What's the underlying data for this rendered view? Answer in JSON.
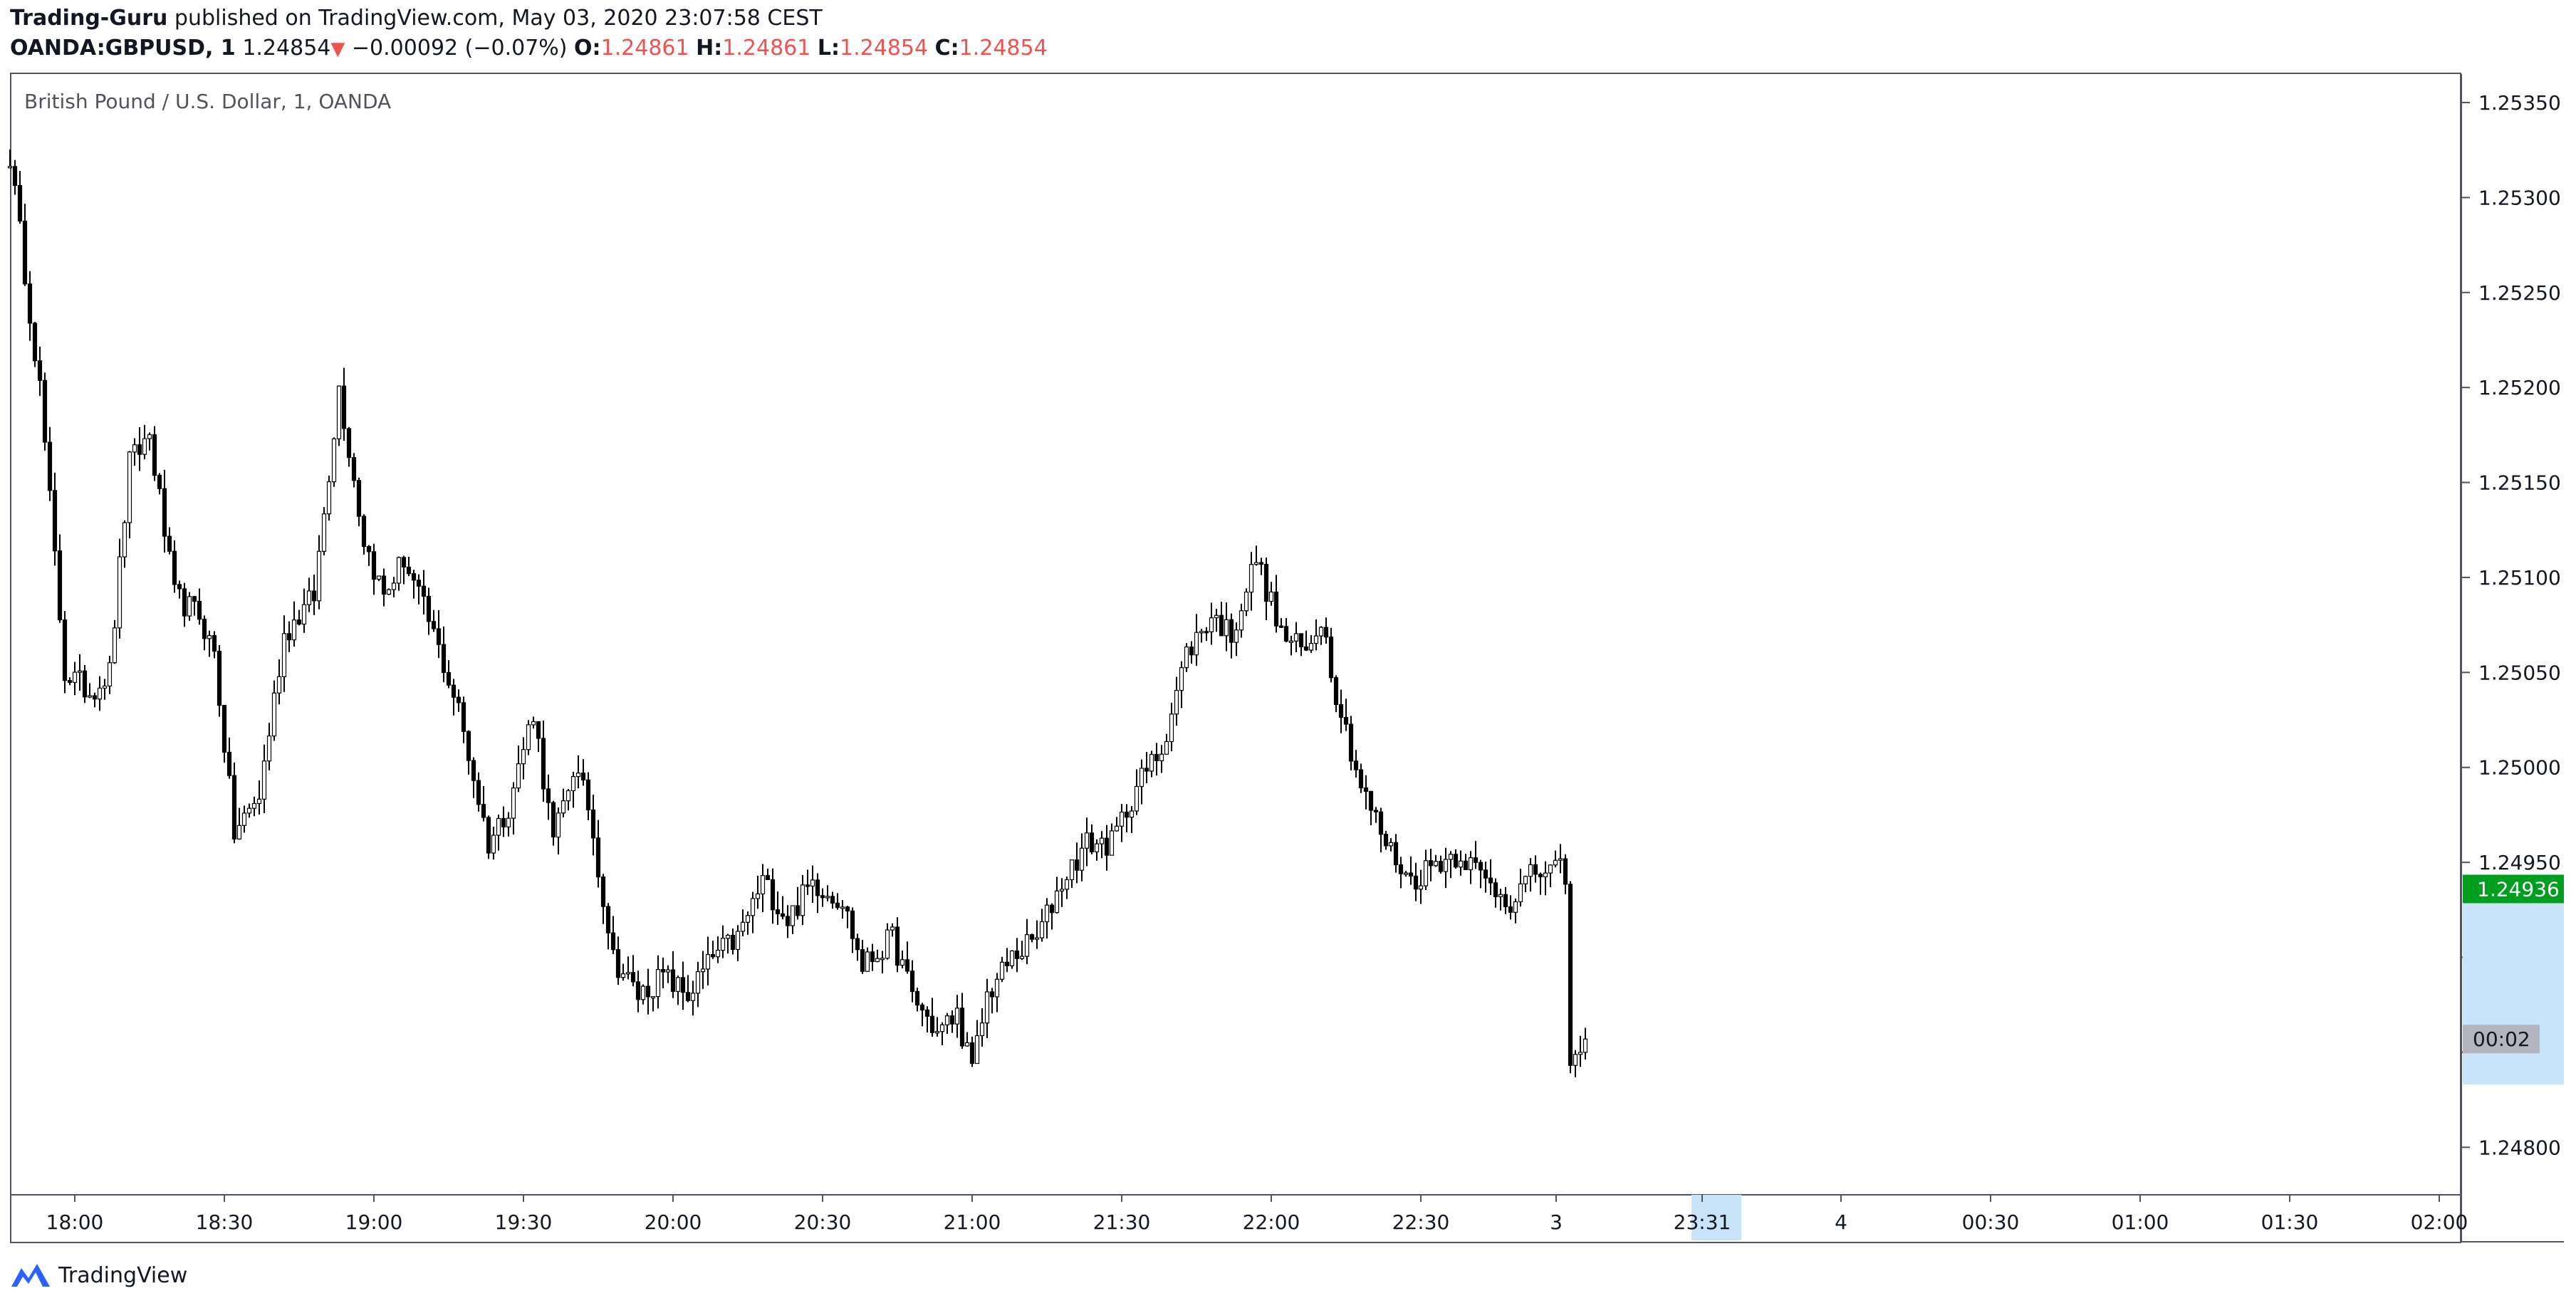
{
  "header": {
    "author": "Trading-Guru",
    "published_text": " published on TradingView.com, May 03, 2020 23:07:58 CEST",
    "symbol": "OANDA:GBPUSD, 1",
    "last": "1.24854",
    "change": "−0.00092 (−0.07%)",
    "o_label": "O:",
    "o_value": "1.24861",
    "h_label": "H:",
    "h_value": "1.24861",
    "l_label": "L:",
    "l_value": "1.24854",
    "c_label": "C:",
    "c_value": "1.24854"
  },
  "symbol_title": "British Pound / U.S. Dollar, 1, OANDA",
  "footer": {
    "brand": "TradingView",
    "icon": "tradingview-logo-icon"
  },
  "colors": {
    "price_badge": "#009e1e",
    "countdown_badge": "#b2b5be",
    "highlight": "#c9e3f9",
    "candle": "#000000",
    "down_arrow": "#ef5350"
  },
  "chart_data": {
    "type": "candlestick",
    "price_axis": {
      "ticks": [
        "1.25350",
        "1.25300",
        "1.25250",
        "1.25200",
        "1.25150",
        "1.25100",
        "1.25050",
        "1.25000",
        "1.24950",
        "1.24900",
        "1.24850",
        "1.24800"
      ],
      "range": [
        1.24775,
        1.25365
      ]
    },
    "time_axis": {
      "ticks": [
        "18:00",
        "18:30",
        "19:00",
        "19:30",
        "20:00",
        "20:30",
        "21:00",
        "21:30",
        "22:00",
        "22:30",
        "3",
        "23:31",
        "4",
        "00:30",
        "01:00",
        "01:30",
        "02:00"
      ],
      "highlight_label": "23:31"
    },
    "current_price_label": "1.24936",
    "countdown_label": "00:02",
    "price_path": [
      {
        "t": "17:47",
        "p": 1.25322
      },
      {
        "t": "17:53",
        "p": 1.252
      },
      {
        "t": "17:58",
        "p": 1.2505
      },
      {
        "t": "18:03",
        "p": 1.2504
      },
      {
        "t": "18:07",
        "p": 1.2505
      },
      {
        "t": "18:11",
        "p": 1.2516
      },
      {
        "t": "18:15",
        "p": 1.25175
      },
      {
        "t": "18:20",
        "p": 1.2509
      },
      {
        "t": "18:25",
        "p": 1.2508
      },
      {
        "t": "18:28",
        "p": 1.2506
      },
      {
        "t": "18:32",
        "p": 1.24965
      },
      {
        "t": "18:37",
        "p": 1.24985
      },
      {
        "t": "18:42",
        "p": 1.2507
      },
      {
        "t": "18:48",
        "p": 1.2509
      },
      {
        "t": "18:53",
        "p": 1.252
      },
      {
        "t": "18:58",
        "p": 1.2512
      },
      {
        "t": "19:02",
        "p": 1.2509
      },
      {
        "t": "19:06",
        "p": 1.2511
      },
      {
        "t": "19:12",
        "p": 1.2507
      },
      {
        "t": "19:17",
        "p": 1.2503
      },
      {
        "t": "19:23",
        "p": 1.2496
      },
      {
        "t": "19:27",
        "p": 1.2498
      },
      {
        "t": "19:32",
        "p": 1.2503
      },
      {
        "t": "19:36",
        "p": 1.2496
      },
      {
        "t": "19:40",
        "p": 1.25
      },
      {
        "t": "19:43",
        "p": 1.2498
      },
      {
        "t": "19:48",
        "p": 1.249
      },
      {
        "t": "19:53",
        "p": 1.2488
      },
      {
        "t": "19:58",
        "p": 1.2489
      },
      {
        "t": "20:03",
        "p": 1.2488
      },
      {
        "t": "20:08",
        "p": 1.249
      },
      {
        "t": "20:13",
        "p": 1.2491
      },
      {
        "t": "20:18",
        "p": 1.2494
      },
      {
        "t": "20:23",
        "p": 1.2492
      },
      {
        "t": "20:28",
        "p": 1.2494
      },
      {
        "t": "20:34",
        "p": 1.2493
      },
      {
        "t": "20:38",
        "p": 1.24895
      },
      {
        "t": "20:44",
        "p": 1.2491
      },
      {
        "t": "20:48",
        "p": 1.2488
      },
      {
        "t": "20:53",
        "p": 1.2486
      },
      {
        "t": "20:57",
        "p": 1.2487
      },
      {
        "t": "21:00",
        "p": 1.2484
      },
      {
        "t": "21:03",
        "p": 1.2488
      },
      {
        "t": "21:08",
        "p": 1.249
      },
      {
        "t": "21:13",
        "p": 1.2491
      },
      {
        "t": "21:18",
        "p": 1.2494
      },
      {
        "t": "21:23",
        "p": 1.2496
      },
      {
        "t": "21:28",
        "p": 1.2496
      },
      {
        "t": "21:33",
        "p": 1.2499
      },
      {
        "t": "21:38",
        "p": 1.2501
      },
      {
        "t": "21:43",
        "p": 1.2506
      },
      {
        "t": "21:48",
        "p": 1.2508
      },
      {
        "t": "21:52",
        "p": 1.2507
      },
      {
        "t": "21:57",
        "p": 1.2511
      },
      {
        "t": "22:02",
        "p": 1.2507
      },
      {
        "t": "22:07",
        "p": 1.2506
      },
      {
        "t": "22:10",
        "p": 1.2508
      },
      {
        "t": "22:13",
        "p": 1.2504
      },
      {
        "t": "22:18",
        "p": 1.2499
      },
      {
        "t": "22:23",
        "p": 1.2496
      },
      {
        "t": "22:28",
        "p": 1.2494
      },
      {
        "t": "22:33",
        "p": 1.2495
      },
      {
        "t": "22:38",
        "p": 1.24955
      },
      {
        "t": "22:43",
        "p": 1.2494
      },
      {
        "t": "22:48",
        "p": 1.2493
      },
      {
        "t": "22:53",
        "p": 1.24945
      },
      {
        "t": "22:59",
        "p": 1.24945
      },
      {
        "t": "23:00",
        "p": 1.2484
      },
      {
        "t": "23:03",
        "p": 1.24857
      }
    ]
  }
}
